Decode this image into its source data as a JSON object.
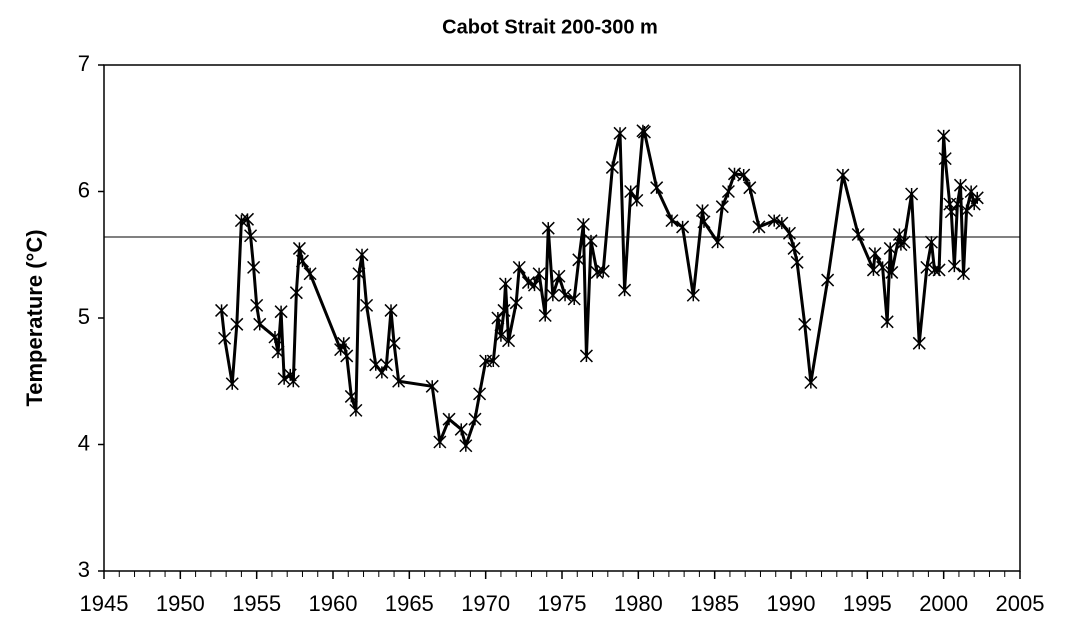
{
  "chart_data": {
    "type": "line",
    "title": "Cabot Strait 200-300 m",
    "y_label": "Temperature (°C)",
    "xlim": [
      1945,
      2005
    ],
    "xticks": [
      1945,
      1950,
      1955,
      1960,
      1965,
      1970,
      1975,
      1980,
      1985,
      1990,
      1995,
      2000,
      2005
    ],
    "ylim": [
      3,
      7
    ],
    "yticks": [
      3,
      4,
      5,
      6,
      7
    ],
    "reference_line": 5.64,
    "color": "#000000",
    "x": [
      1952.7,
      1952.9,
      1953.4,
      1953.7,
      1954.0,
      1954.4,
      1954.6,
      1954.8,
      1955.0,
      1955.2,
      1956.2,
      1956.4,
      1956.6,
      1956.8,
      1957.2,
      1957.4,
      1957.6,
      1957.8,
      1958.0,
      1958.5,
      1960.5,
      1960.7,
      1960.9,
      1961.2,
      1961.5,
      1961.7,
      1961.9,
      1962.2,
      1962.8,
      1963.2,
      1963.5,
      1963.8,
      1964.0,
      1964.3,
      1966.5,
      1967.0,
      1967.6,
      1968.4,
      1968.7,
      1969.3,
      1969.6,
      1970.0,
      1970.5,
      1970.8,
      1971.0,
      1971.2,
      1971.3,
      1971.5,
      1972.0,
      1972.2,
      1972.8,
      1973.2,
      1973.5,
      1973.9,
      1974.1,
      1974.4,
      1974.8,
      1975.2,
      1975.8,
      1976.1,
      1976.4,
      1976.6,
      1976.9,
      1977.3,
      1977.7,
      1978.3,
      1978.8,
      1979.1,
      1979.5,
      1979.9,
      1980.3,
      1980.4,
      1981.2,
      1982.2,
      1982.9,
      1983.6,
      1984.2,
      1984.3,
      1985.2,
      1985.5,
      1985.9,
      1986.3,
      1986.9,
      1987.3,
      1987.9,
      1988.9,
      1989.4,
      1989.9,
      1990.2,
      1990.4,
      1990.9,
      1991.3,
      1992.4,
      1993.4,
      1994.4,
      1995.4,
      1995.5,
      1996.0,
      1996.3,
      1996.5,
      1996.6,
      1997.1,
      1997.2,
      1997.4,
      1997.9,
      1998.4,
      1998.9,
      1999.2,
      1999.4,
      1999.7,
      2000.0,
      2000.1,
      2000.4,
      2000.5,
      2000.7,
      2000.9,
      2001.1,
      2001.3,
      2001.5,
      2001.8,
      2002.0,
      2002.2
    ],
    "values": [
      5.06,
      4.84,
      4.48,
      4.95,
      5.77,
      5.78,
      5.65,
      5.4,
      5.1,
      4.95,
      4.85,
      4.73,
      5.05,
      4.52,
      4.55,
      4.5,
      5.2,
      5.55,
      5.45,
      5.35,
      4.75,
      4.8,
      4.7,
      4.38,
      4.27,
      5.35,
      5.5,
      5.1,
      4.63,
      4.57,
      4.63,
      5.06,
      4.8,
      4.5,
      4.46,
      4.02,
      4.2,
      4.12,
      3.99,
      4.2,
      4.4,
      4.66,
      4.66,
      5.0,
      4.86,
      5.06,
      5.27,
      4.82,
      5.12,
      5.4,
      5.28,
      5.26,
      5.35,
      5.02,
      5.71,
      5.18,
      5.33,
      5.18,
      5.15,
      5.46,
      5.74,
      4.7,
      5.61,
      5.36,
      5.37,
      6.19,
      6.46,
      5.22,
      6.0,
      5.93,
      6.48,
      6.47,
      6.03,
      5.77,
      5.72,
      5.18,
      5.85,
      5.76,
      5.6,
      5.88,
      6.0,
      6.14,
      6.13,
      6.03,
      5.72,
      5.77,
      5.75,
      5.67,
      5.55,
      5.44,
      4.95,
      4.49,
      5.3,
      6.13,
      5.66,
      5.38,
      5.51,
      5.4,
      4.97,
      5.55,
      5.36,
      5.66,
      5.58,
      5.6,
      5.98,
      4.8,
      5.4,
      5.6,
      5.38,
      5.38,
      6.44,
      6.26,
      5.9,
      5.84,
      5.41,
      5.9,
      6.05,
      5.35,
      5.85,
      6.0,
      5.9,
      5.95
    ]
  }
}
